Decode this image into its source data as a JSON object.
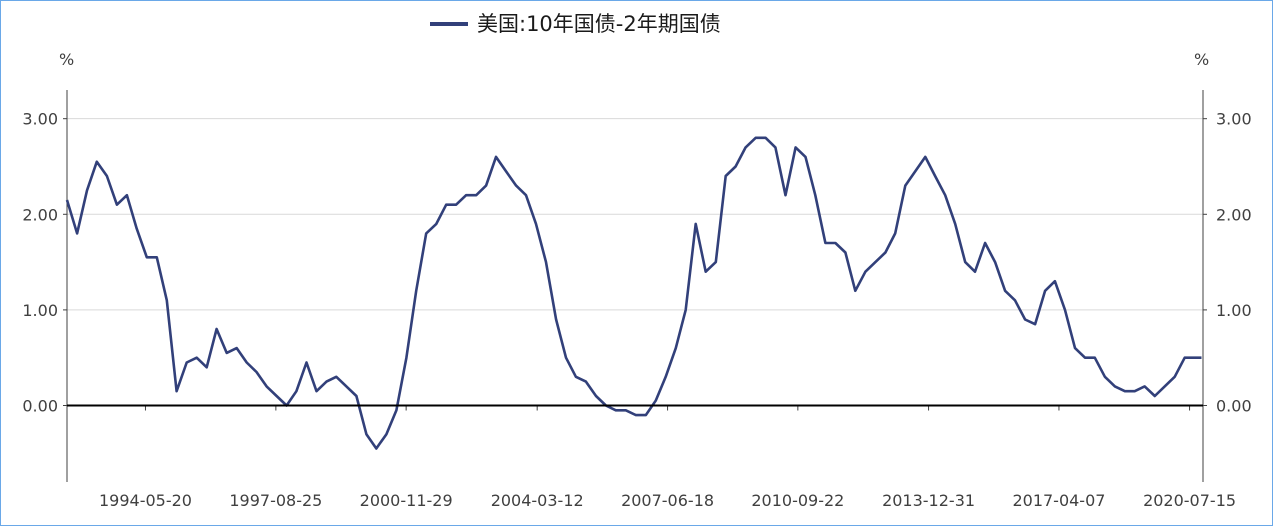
{
  "chart_data": {
    "type": "line",
    "title": "",
    "legend": {
      "label": "美国:10年国债-2年期国债",
      "placement": "top-center"
    },
    "y_unit_left": "%",
    "y_unit_right": "%",
    "ylim": [
      -0.8,
      3.3
    ],
    "yticks": [
      0.0,
      1.0,
      2.0,
      3.0
    ],
    "ytick_labels": [
      "0.00",
      "1.00",
      "2.00",
      "3.00"
    ],
    "xticks": [
      "1994-05-20",
      "1997-08-25",
      "2000-11-29",
      "2004-03-12",
      "2007-06-18",
      "2010-09-22",
      "2013-12-31",
      "2017-04-07",
      "2020-07-15"
    ],
    "grid": true,
    "zero_line": true,
    "colors": {
      "series": "#32407a",
      "grid": "#d9d9d9",
      "axis": "#404040"
    },
    "series": [
      {
        "name": "美国:10年国债-2年期国债",
        "x": [
          "1992-06-01",
          "1992-09-01",
          "1992-12-01",
          "1993-03-01",
          "1993-06-01",
          "1993-09-01",
          "1993-12-01",
          "1994-03-01",
          "1994-06-01",
          "1994-09-01",
          "1994-12-01",
          "1995-03-01",
          "1995-06-01",
          "1995-09-01",
          "1995-12-01",
          "1996-03-01",
          "1996-06-01",
          "1996-09-01",
          "1996-12-01",
          "1997-03-01",
          "1997-06-01",
          "1997-09-01",
          "1997-12-01",
          "1998-03-01",
          "1998-06-01",
          "1998-09-01",
          "1998-12-01",
          "1999-03-01",
          "1999-06-01",
          "1999-09-01",
          "1999-12-01",
          "2000-03-01",
          "2000-06-01",
          "2000-09-01",
          "2000-12-01",
          "2001-03-01",
          "2001-06-01",
          "2001-09-01",
          "2001-12-01",
          "2002-03-01",
          "2002-06-01",
          "2002-09-01",
          "2002-12-01",
          "2003-03-01",
          "2003-06-01",
          "2003-09-01",
          "2003-12-01",
          "2004-03-01",
          "2004-06-01",
          "2004-09-01",
          "2004-12-01",
          "2005-03-01",
          "2005-06-01",
          "2005-09-01",
          "2005-12-01",
          "2006-03-01",
          "2006-06-01",
          "2006-09-01",
          "2006-12-01",
          "2007-03-01",
          "2007-06-01",
          "2007-09-01",
          "2007-12-01",
          "2008-03-01",
          "2008-06-01",
          "2008-09-01",
          "2008-12-01",
          "2009-03-01",
          "2009-06-01",
          "2009-09-01",
          "2009-12-01",
          "2010-03-01",
          "2010-06-01",
          "2010-09-01",
          "2010-12-01",
          "2011-03-01",
          "2011-06-01",
          "2011-09-01",
          "2011-12-01",
          "2012-03-01",
          "2012-06-01",
          "2012-09-01",
          "2012-12-01",
          "2013-03-01",
          "2013-06-01",
          "2013-09-01",
          "2013-12-01",
          "2014-03-01",
          "2014-06-01",
          "2014-09-01",
          "2014-12-01",
          "2015-03-01",
          "2015-06-01",
          "2015-09-01",
          "2015-12-01",
          "2016-03-01",
          "2016-06-01",
          "2016-09-01",
          "2016-12-01",
          "2017-03-01",
          "2017-06-01",
          "2017-09-01",
          "2017-12-01",
          "2018-03-01",
          "2018-06-01",
          "2018-09-01",
          "2018-12-01",
          "2019-03-01",
          "2019-06-01",
          "2019-09-01",
          "2019-12-01",
          "2020-03-01",
          "2020-06-01",
          "2020-09-01",
          "2020-11-01"
        ],
        "values": [
          2.15,
          1.8,
          2.25,
          2.55,
          2.4,
          2.1,
          2.2,
          1.85,
          1.55,
          1.55,
          1.1,
          0.15,
          0.45,
          0.5,
          0.4,
          0.8,
          0.55,
          0.6,
          0.45,
          0.35,
          0.2,
          0.1,
          0.0,
          0.15,
          0.45,
          0.15,
          0.25,
          0.3,
          0.2,
          0.1,
          -0.3,
          -0.45,
          -0.3,
          -0.05,
          0.5,
          1.2,
          1.8,
          1.9,
          2.1,
          2.1,
          2.2,
          2.2,
          2.3,
          2.6,
          2.45,
          2.3,
          2.2,
          1.9,
          1.5,
          0.9,
          0.5,
          0.3,
          0.25,
          0.1,
          0.0,
          -0.05,
          -0.05,
          -0.1,
          -0.1,
          0.05,
          0.3,
          0.6,
          1.0,
          1.9,
          1.4,
          1.5,
          2.4,
          2.5,
          2.7,
          2.8,
          2.8,
          2.7,
          2.2,
          2.7,
          2.6,
          2.2,
          1.7,
          1.7,
          1.6,
          1.2,
          1.4,
          1.5,
          1.6,
          1.8,
          2.3,
          2.45,
          2.6,
          2.4,
          2.2,
          1.9,
          1.5,
          1.4,
          1.7,
          1.5,
          1.2,
          1.1,
          0.9,
          0.85,
          1.2,
          1.3,
          1.0,
          0.6,
          0.5,
          0.5,
          0.3,
          0.2,
          0.15,
          0.15,
          0.2,
          0.1,
          0.2,
          0.3,
          0.5,
          0.5,
          0.5
        ]
      }
    ]
  }
}
